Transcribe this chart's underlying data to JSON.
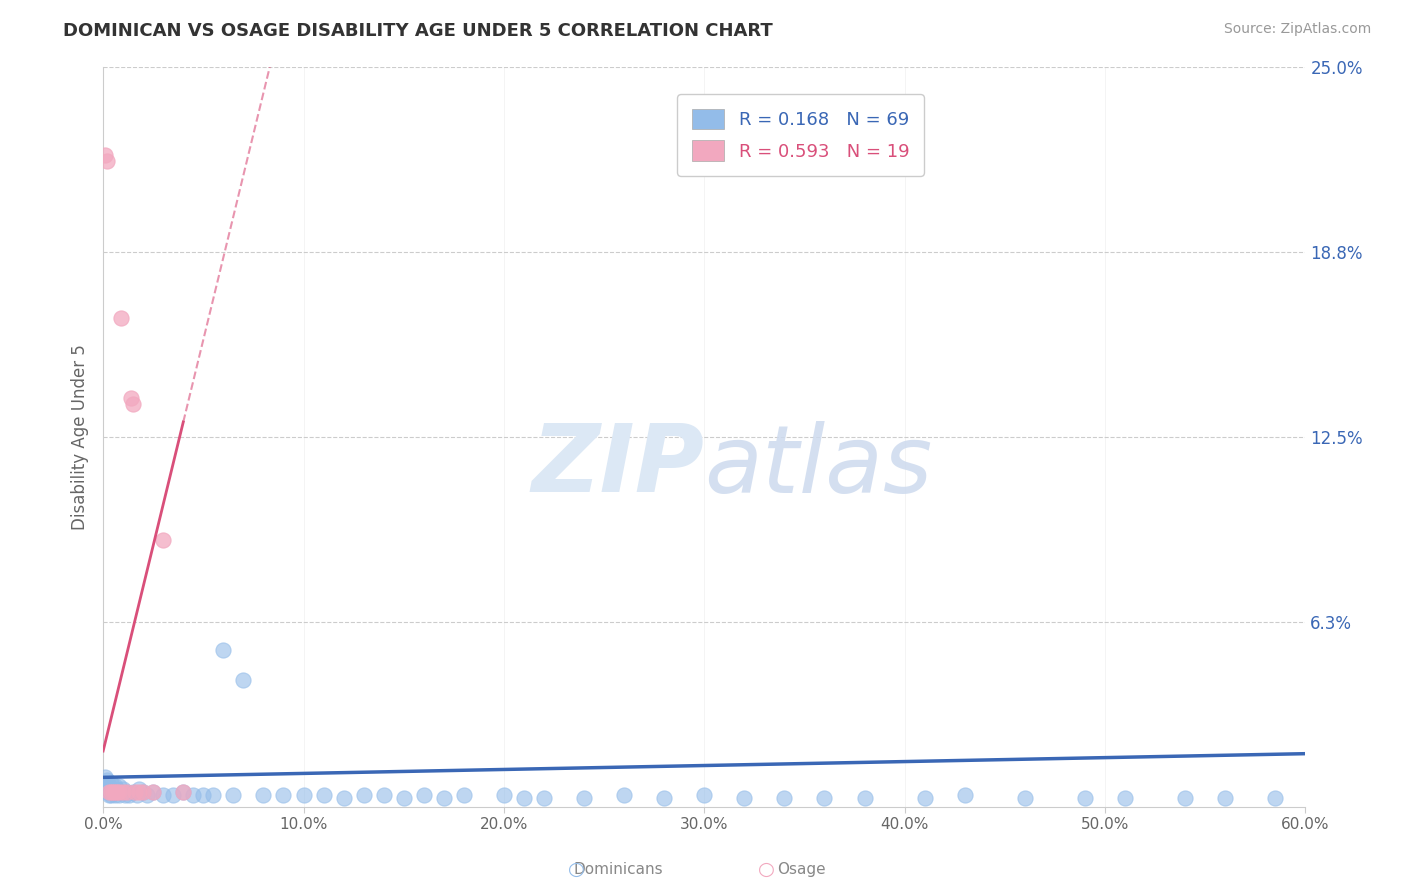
{
  "title": "DOMINICAN VS OSAGE DISABILITY AGE UNDER 5 CORRELATION CHART",
  "source": "Source: ZipAtlas.com",
  "ylabel": "Disability Age Under 5",
  "xlim": [
    0.0,
    0.6
  ],
  "ylim": [
    0.0,
    0.25
  ],
  "xticks": [
    0.0,
    0.1,
    0.2,
    0.3,
    0.4,
    0.5,
    0.6
  ],
  "xticklabels": [
    "0.0%",
    "10.0%",
    "20.0%",
    "30.0%",
    "40.0%",
    "50.0%",
    "60.0%"
  ],
  "ytick_positions": [
    0.0625,
    0.125,
    0.1875,
    0.25
  ],
  "yticklabels": [
    "6.3%",
    "12.5%",
    "18.8%",
    "25.0%"
  ],
  "grid_color": "#cccccc",
  "background_color": "#ffffff",
  "dominicans_color": "#93bce9",
  "osage_color": "#f2a8bf",
  "dominicans_line_color": "#3a67b5",
  "osage_line_color": "#d94f7a",
  "watermark_text": "ZIPatlas",
  "watermark_color": "#dce8f5",
  "R_dominicans": 0.168,
  "N_dominicans": 69,
  "R_osage": 0.593,
  "N_osage": 19,
  "dom_x": [
    0.001,
    0.001,
    0.002,
    0.002,
    0.002,
    0.003,
    0.003,
    0.003,
    0.004,
    0.004,
    0.004,
    0.005,
    0.005,
    0.006,
    0.006,
    0.007,
    0.007,
    0.008,
    0.008,
    0.009,
    0.01,
    0.011,
    0.012,
    0.013,
    0.015,
    0.017,
    0.018,
    0.02,
    0.022,
    0.025,
    0.03,
    0.035,
    0.04,
    0.045,
    0.05,
    0.055,
    0.06,
    0.065,
    0.07,
    0.08,
    0.09,
    0.1,
    0.11,
    0.12,
    0.13,
    0.14,
    0.15,
    0.16,
    0.17,
    0.18,
    0.2,
    0.21,
    0.22,
    0.24,
    0.26,
    0.28,
    0.3,
    0.32,
    0.34,
    0.36,
    0.38,
    0.41,
    0.43,
    0.46,
    0.49,
    0.51,
    0.54,
    0.56,
    0.585
  ],
  "dom_y": [
    0.01,
    0.008,
    0.009,
    0.007,
    0.005,
    0.007,
    0.006,
    0.004,
    0.008,
    0.005,
    0.004,
    0.006,
    0.005,
    0.007,
    0.004,
    0.006,
    0.005,
    0.007,
    0.004,
    0.005,
    0.006,
    0.004,
    0.005,
    0.004,
    0.005,
    0.004,
    0.006,
    0.005,
    0.004,
    0.005,
    0.004,
    0.004,
    0.005,
    0.004,
    0.004,
    0.004,
    0.053,
    0.004,
    0.043,
    0.004,
    0.004,
    0.004,
    0.004,
    0.003,
    0.004,
    0.004,
    0.003,
    0.004,
    0.003,
    0.004,
    0.004,
    0.003,
    0.003,
    0.003,
    0.004,
    0.003,
    0.004,
    0.003,
    0.003,
    0.003,
    0.003,
    0.003,
    0.004,
    0.003,
    0.003,
    0.003,
    0.003,
    0.003,
    0.003
  ],
  "osage_x": [
    0.001,
    0.002,
    0.003,
    0.004,
    0.005,
    0.006,
    0.007,
    0.008,
    0.009,
    0.01,
    0.012,
    0.014,
    0.015,
    0.016,
    0.018,
    0.02,
    0.025,
    0.03,
    0.04
  ],
  "osage_y": [
    0.22,
    0.218,
    0.005,
    0.005,
    0.005,
    0.005,
    0.005,
    0.005,
    0.165,
    0.005,
    0.005,
    0.138,
    0.136,
    0.005,
    0.005,
    0.005,
    0.005,
    0.09,
    0.005
  ],
  "osage_line_x0": -0.005,
  "osage_line_x1": 0.085,
  "osage_line_y0": 0.005,
  "osage_line_y1": 0.255,
  "osage_line_dash_x0": 0.055,
  "osage_line_dash_x1": 0.095,
  "dom_line_x0": 0.0,
  "dom_line_x1": 0.6,
  "dom_line_y0": 0.01,
  "dom_line_y1": 0.018
}
